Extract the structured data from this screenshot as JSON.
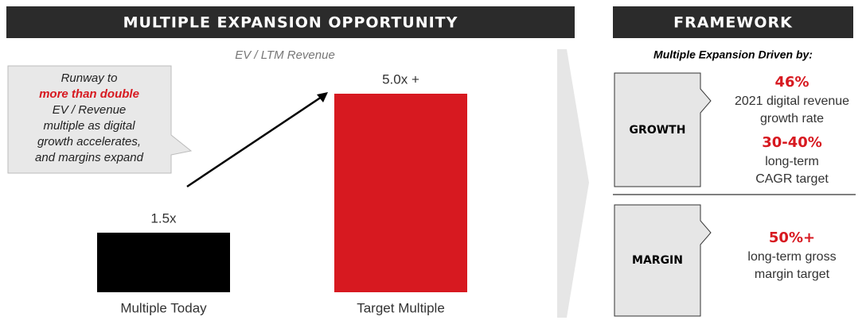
{
  "header": {
    "title": "MULTIPLE EXPANSION OPPORTUNITY"
  },
  "chart_data": {
    "type": "bar",
    "subtitle": "EV / LTM Revenue",
    "categories": [
      "Multiple Today",
      "Target Multiple"
    ],
    "values": [
      1.5,
      5.0
    ],
    "value_labels": [
      "1.5x",
      "5.0x +"
    ],
    "colors": [
      "#000000",
      "#d71920"
    ]
  },
  "callout": {
    "lines": [
      "Runway to",
      "more than double",
      "EV / Revenue",
      "multiple as digital",
      "growth accelerates,",
      "and margins expand"
    ]
  },
  "framework": {
    "title": "FRAMEWORK",
    "subtitle": "Multiple Expansion Driven by:",
    "items": [
      {
        "label": "GROWTH",
        "metrics": [
          {
            "value": "46%",
            "desc": [
              "2021 digital revenue",
              "growth rate"
            ]
          },
          {
            "value": "30-40%",
            "desc": [
              "long-term",
              "CAGR target"
            ]
          }
        ]
      },
      {
        "label": "MARGIN",
        "metrics": [
          {
            "value": "50%+",
            "desc": [
              "long-term gross",
              "margin target"
            ]
          }
        ]
      }
    ]
  }
}
